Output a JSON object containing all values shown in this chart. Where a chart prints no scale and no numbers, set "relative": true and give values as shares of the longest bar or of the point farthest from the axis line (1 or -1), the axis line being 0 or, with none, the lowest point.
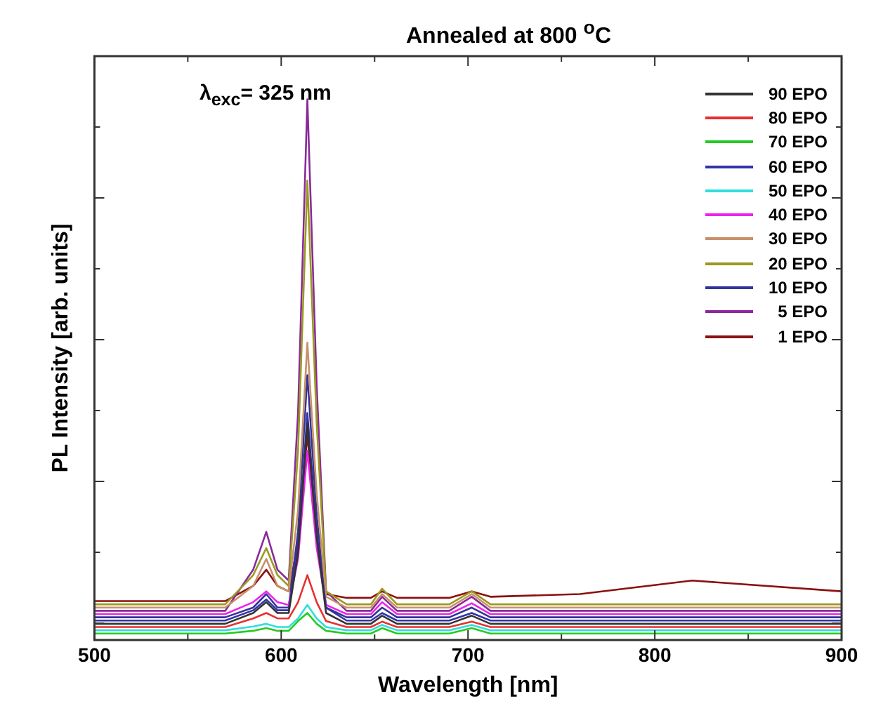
{
  "chart_data": {
    "type": "line",
    "title": "Annealed at 800 $^{o}$C",
    "xlabel": "Wavelength [nm]",
    "ylabel": "PL Intensity [arb. units]",
    "annotations": [
      "λ$_{exc}$= 325 nm"
    ],
    "x": [
      500,
      570,
      585,
      592,
      598,
      604,
      609,
      614,
      619,
      624,
      635,
      648,
      654,
      662,
      690,
      702,
      712,
      760,
      820,
      900
    ],
    "relative": true,
    "xlim": [
      500,
      900
    ],
    "xticks": [
      500,
      600,
      700,
      800,
      900
    ],
    "legend": "top right",
    "marker": "none",
    "line_style": "solid",
    "grid": false,
    "series": [
      {
        "name": "90 EPO",
        "color": "#333333",
        "values": [
          0.03,
          0.03,
          0.05,
          0.07,
          0.05,
          0.05,
          0.16,
          0.4,
          0.19,
          0.05,
          0.03,
          0.03,
          0.045,
          0.03,
          0.03,
          0.045,
          0.03,
          0.03,
          0.03,
          0.03
        ]
      },
      {
        "name": "80 EPO",
        "color": "#e83030",
        "values": [
          0.024,
          0.024,
          0.04,
          0.05,
          0.04,
          0.04,
          0.07,
          0.12,
          0.07,
          0.035,
          0.024,
          0.024,
          0.034,
          0.024,
          0.024,
          0.034,
          0.024,
          0.024,
          0.024,
          0.024
        ]
      },
      {
        "name": "70 EPO",
        "color": "#22cc22",
        "values": [
          0.012,
          0.012,
          0.017,
          0.022,
          0.017,
          0.017,
          0.035,
          0.05,
          0.03,
          0.017,
          0.012,
          0.012,
          0.022,
          0.012,
          0.012,
          0.022,
          0.012,
          0.012,
          0.012,
          0.012
        ]
      },
      {
        "name": "60 EPO",
        "color": "#3333aa",
        "values": [
          0.036,
          0.036,
          0.055,
          0.075,
          0.055,
          0.055,
          0.17,
          0.42,
          0.2,
          0.06,
          0.036,
          0.036,
          0.05,
          0.036,
          0.036,
          0.05,
          0.036,
          0.036,
          0.036,
          0.036
        ]
      },
      {
        "name": "50 EPO",
        "color": "#33dddd",
        "values": [
          0.018,
          0.018,
          0.025,
          0.03,
          0.024,
          0.024,
          0.04,
          0.065,
          0.04,
          0.024,
          0.018,
          0.018,
          0.028,
          0.018,
          0.018,
          0.028,
          0.018,
          0.018,
          0.018,
          0.018
        ]
      },
      {
        "name": "40 EPO",
        "color": "#ee22ee",
        "values": [
          0.048,
          0.048,
          0.07,
          0.09,
          0.07,
          0.065,
          0.15,
          0.35,
          0.17,
          0.065,
          0.048,
          0.048,
          0.07,
          0.048,
          0.048,
          0.068,
          0.048,
          0.048,
          0.048,
          0.048
        ]
      },
      {
        "name": "30 EPO",
        "color": "#c8906a",
        "values": [
          0.06,
          0.06,
          0.1,
          0.15,
          0.1,
          0.09,
          0.24,
          0.55,
          0.27,
          0.08,
          0.06,
          0.06,
          0.085,
          0.06,
          0.06,
          0.085,
          0.06,
          0.06,
          0.06,
          0.06
        ]
      },
      {
        "name": "20 EPO",
        "color": "#9a9a20",
        "values": [
          0.066,
          0.066,
          0.12,
          0.17,
          0.12,
          0.1,
          0.35,
          0.85,
          0.4,
          0.09,
          0.066,
          0.066,
          0.095,
          0.066,
          0.066,
          0.09,
          0.066,
          0.066,
          0.066,
          0.066
        ]
      },
      {
        "name": "10 EPO",
        "color": "#333399",
        "values": [
          0.042,
          0.042,
          0.06,
          0.085,
          0.06,
          0.06,
          0.2,
          0.49,
          0.23,
          0.06,
          0.042,
          0.042,
          0.06,
          0.042,
          0.042,
          0.06,
          0.042,
          0.042,
          0.042,
          0.042
        ]
      },
      {
        "name": "5 EPO",
        "color": "#8a2a9a",
        "values": [
          0.054,
          0.054,
          0.13,
          0.2,
          0.13,
          0.11,
          0.42,
          1.0,
          0.47,
          0.09,
          0.054,
          0.054,
          0.08,
          0.054,
          0.054,
          0.08,
          0.054,
          0.054,
          0.054,
          0.054
        ]
      },
      {
        "name": "1 EPO",
        "color": "#8b1010",
        "values": [
          0.072,
          0.072,
          0.1,
          0.13,
          0.1,
          0.09,
          0.18,
          0.38,
          0.19,
          0.085,
          0.078,
          0.078,
          0.09,
          0.078,
          0.078,
          0.09,
          0.08,
          0.085,
          0.11,
          0.09
        ]
      }
    ]
  }
}
